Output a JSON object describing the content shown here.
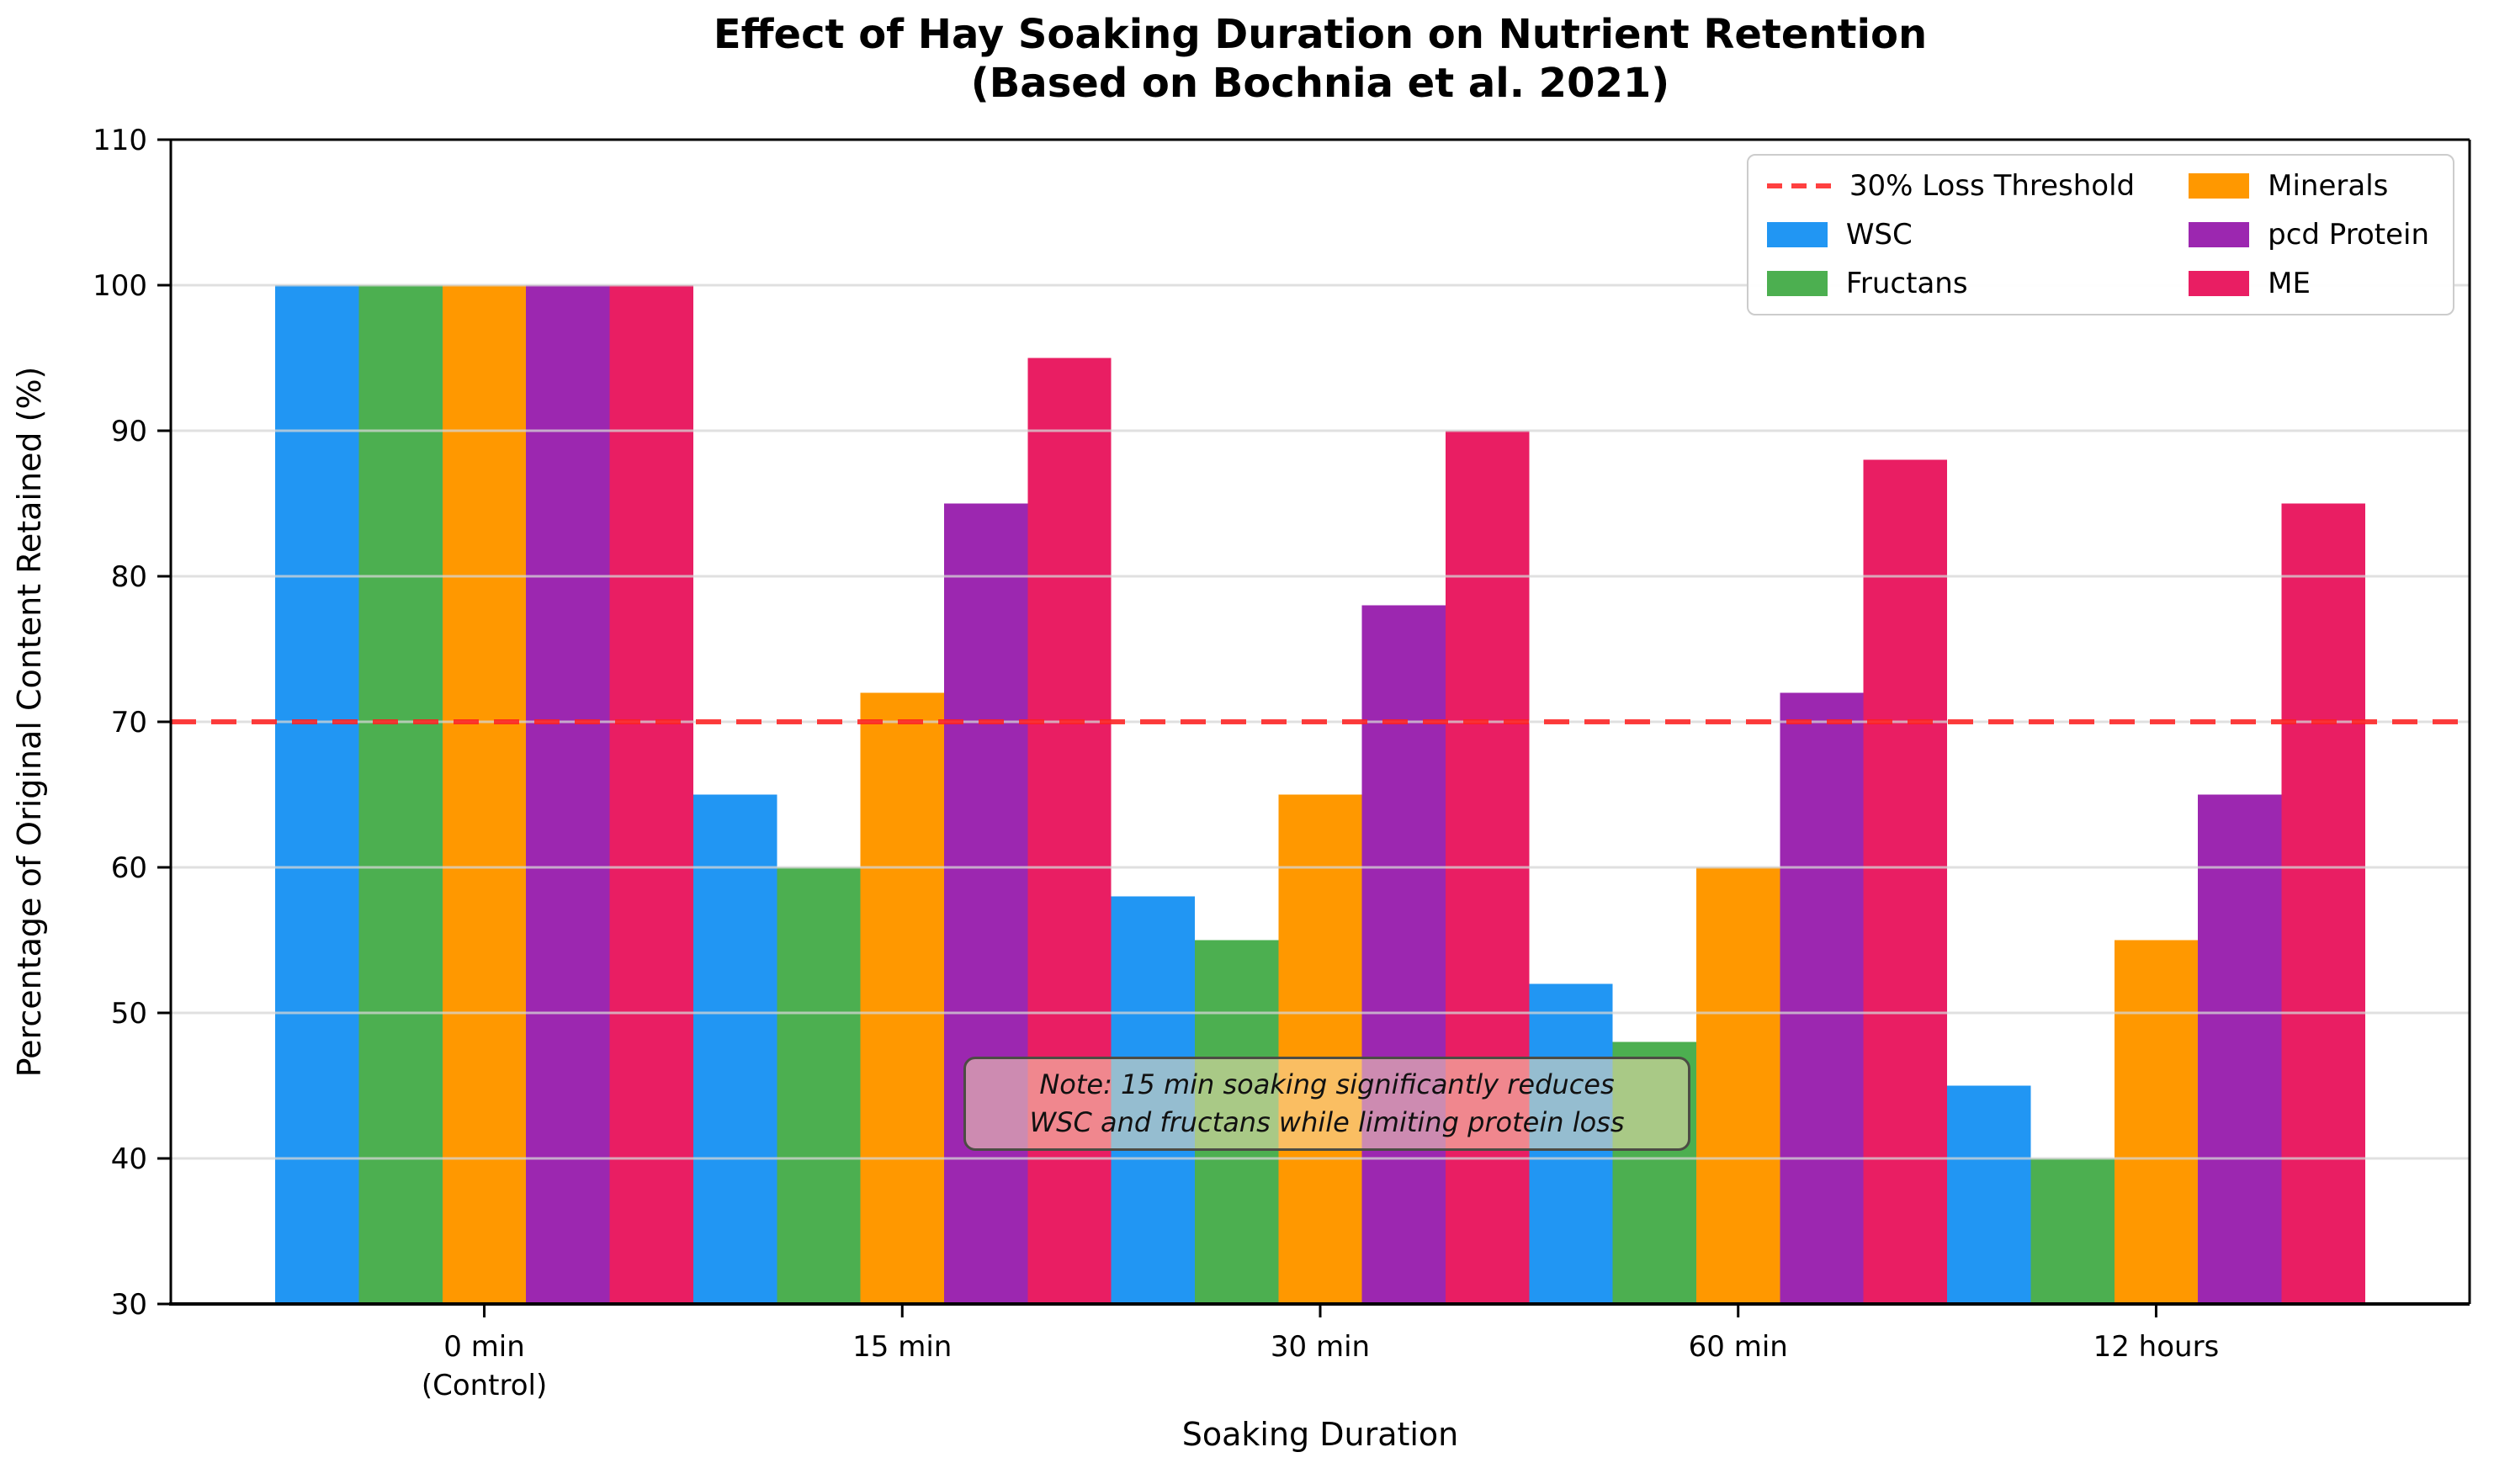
{
  "chart_data": {
    "type": "bar",
    "title": "Effect of Hay Soaking Duration on Nutrient Retention",
    "subtitle": "(Based on Bochnia et al. 2021)",
    "xlabel": "Soaking Duration",
    "ylabel": "Percentage of Original Content Retained (%)",
    "categories": [
      "0 min\n(Control)",
      "15 min",
      "30 min",
      "60 min",
      "12 hours"
    ],
    "series": [
      {
        "name": "WSC",
        "color": "#2196F3",
        "values": [
          100,
          65,
          58,
          52,
          45
        ]
      },
      {
        "name": "Fructans",
        "color": "#4CAF50",
        "values": [
          100,
          60,
          55,
          48,
          40
        ]
      },
      {
        "name": "Minerals",
        "color": "#FF9800",
        "values": [
          100,
          72,
          65,
          60,
          55
        ]
      },
      {
        "name": "pcd Protein",
        "color": "#9C27B0",
        "values": [
          100,
          85,
          78,
          72,
          65
        ]
      },
      {
        "name": "ME",
        "color": "#E91E63",
        "values": [
          100,
          95,
          90,
          88,
          85
        ]
      }
    ],
    "threshold": {
      "label": "30% Loss Threshold",
      "value": 70,
      "color": "#FF1E1E",
      "style": "dashed"
    },
    "ylim": [
      30,
      110
    ],
    "yticks": [
      30,
      40,
      50,
      60,
      70,
      80,
      90,
      100,
      110
    ],
    "grid": true,
    "legend_position": "upper right",
    "annotation": {
      "line1": "Note: 15 min soaking significantly reduces",
      "line2": "WSC and fructans while limiting protein loss"
    }
  }
}
